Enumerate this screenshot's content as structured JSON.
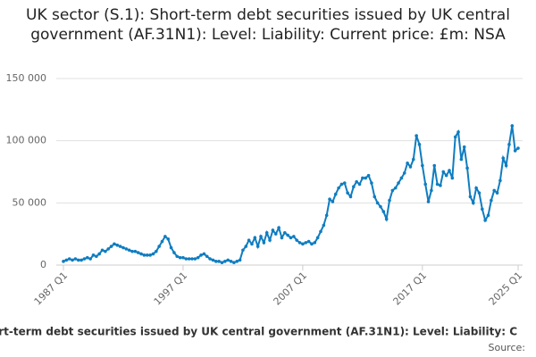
{
  "chart_data": {
    "type": "line",
    "title": "UK sector (S.1): Short-term debt securities issued by UK central government (AF.31N1): Level: Liability: Current price: £m: NSA",
    "legend_text": "ort-term debt securities issued by UK central government (AF.31N1): Level: Liability: C",
    "source": "Source:",
    "categories": [
      "1987 Q1",
      null,
      null,
      null,
      null,
      null,
      null,
      null,
      null,
      null,
      null,
      null,
      null,
      null,
      null,
      null,
      null,
      null,
      null,
      null,
      null,
      null,
      null,
      null,
      null,
      null,
      null,
      null,
      null,
      null,
      null,
      null,
      null,
      null,
      null,
      null,
      null,
      null,
      null,
      null,
      "1997 Q1",
      null,
      null,
      null,
      null,
      null,
      null,
      null,
      null,
      null,
      null,
      null,
      null,
      null,
      null,
      null,
      null,
      null,
      null,
      null,
      null,
      null,
      null,
      null,
      null,
      null,
      null,
      null,
      null,
      null,
      null,
      null,
      null,
      null,
      null,
      null,
      null,
      null,
      null,
      null,
      "2007 Q1",
      null,
      null,
      null,
      null,
      null,
      null,
      null,
      null,
      null,
      null,
      null,
      null,
      null,
      null,
      null,
      null,
      null,
      null,
      null,
      null,
      null,
      null,
      null,
      null,
      null,
      null,
      null,
      null,
      null,
      null,
      null,
      null,
      null,
      null,
      null,
      null,
      null,
      null,
      null,
      "2017 Q1",
      null,
      null,
      null,
      null,
      null,
      null,
      null,
      null,
      null,
      null,
      null,
      null,
      null,
      null,
      null,
      null,
      null,
      null,
      null,
      null,
      null,
      null,
      null,
      null,
      null,
      null,
      null,
      null,
      null,
      null,
      null,
      "2025 Q1"
    ],
    "values": [
      3000,
      4000,
      5000,
      4000,
      5000,
      4000,
      4000,
      5000,
      6000,
      5000,
      8000,
      7000,
      9000,
      12000,
      11000,
      13000,
      15000,
      17000,
      16000,
      15000,
      14000,
      13000,
      12000,
      11000,
      11000,
      10000,
      9000,
      8000,
      8000,
      8000,
      9000,
      11000,
      15000,
      19000,
      23000,
      21000,
      14000,
      10000,
      7000,
      6000,
      6000,
      5000,
      5000,
      5000,
      5000,
      6000,
      8000,
      9000,
      7000,
      5000,
      4000,
      3000,
      3000,
      2000,
      3000,
      4000,
      3000,
      2000,
      3000,
      4000,
      12000,
      15000,
      20000,
      17000,
      22000,
      15000,
      23000,
      18000,
      26000,
      20000,
      28000,
      25000,
      30000,
      22000,
      26000,
      24000,
      22000,
      23000,
      20000,
      18000,
      17000,
      18000,
      19000,
      17000,
      18000,
      22000,
      27000,
      32000,
      40000,
      53000,
      51000,
      57000,
      62000,
      65000,
      66000,
      58000,
      55000,
      63000,
      67000,
      65000,
      70000,
      70000,
      72000,
      66000,
      55000,
      50000,
      47000,
      43000,
      37000,
      52000,
      60000,
      62000,
      66000,
      70000,
      74000,
      82000,
      79000,
      85000,
      104000,
      97000,
      80000,
      65000,
      51000,
      60000,
      80000,
      65000,
      64000,
      75000,
      72000,
      76000,
      70000,
      103000,
      107000,
      85000,
      95000,
      78000,
      55000,
      50000,
      62000,
      58000,
      45000,
      36000,
      40000,
      52000,
      60000,
      58000,
      68000,
      86000,
      80000,
      97000,
      112000,
      92000,
      94000
    ],
    "color": "#0f7dc0",
    "ylim": [
      0,
      150000
    ],
    "yticks": [
      0,
      {
        "value": 50000,
        "label": "50 000"
      },
      {
        "value": 100000,
        "label": "100 000"
      },
      {
        "value": 150000,
        "label": "150 000"
      }
    ],
    "grid": true
  }
}
